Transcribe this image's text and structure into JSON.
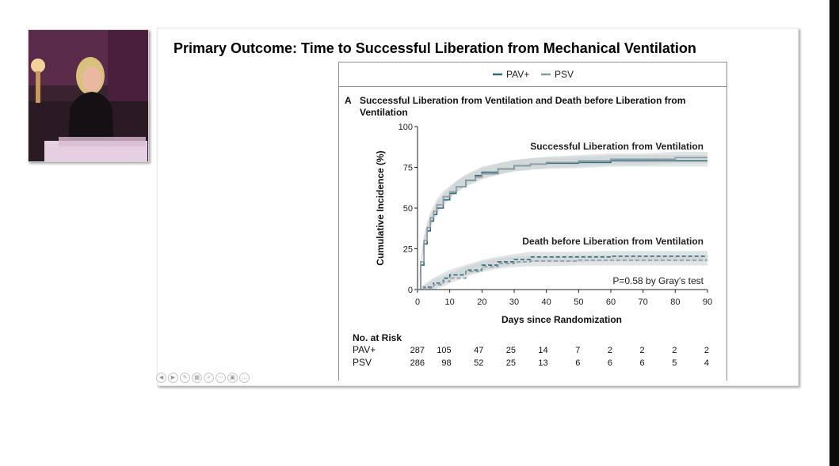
{
  "slide": {
    "title": "Primary Outcome:  Time to Successful Liberation from Mechanical Ventilation"
  },
  "legend": {
    "items": [
      "PAV+",
      "PSV"
    ]
  },
  "figure": {
    "panel_letter": "A",
    "panel_title_line1": "Successful Liberation from Ventilation and Death before Liberation from",
    "panel_title_line2": "Ventilation",
    "curve_label_liberation": "Successful Liberation from Ventilation",
    "curve_label_death": "Death before Liberation from Ventilation",
    "p_value": "P=0.58 by Gray's test"
  },
  "risk_table": {
    "title": "No. at Risk",
    "rows": [
      {
        "label": "PAV+",
        "values": [
          "287",
          "105",
          "47",
          "25",
          "14",
          "7",
          "2",
          "2",
          "2",
          "2"
        ]
      },
      {
        "label": "PSV",
        "values": [
          "286",
          "98",
          "52",
          "25",
          "13",
          "6",
          "6",
          "6",
          "5",
          "4"
        ]
      }
    ]
  },
  "chart_data": {
    "type": "line",
    "title": "Successful Liberation from Ventilation and Death before Liberation from Ventilation",
    "xlabel": "Days since Randomization",
    "ylabel": "Cumulative Incidence (%)",
    "xlim": [
      0,
      90
    ],
    "ylim": [
      0,
      100
    ],
    "xticks": [
      0,
      10,
      20,
      30,
      40,
      50,
      60,
      70,
      80,
      90
    ],
    "yticks": [
      0,
      25,
      50,
      75,
      100
    ],
    "grid": false,
    "legend_position": "top",
    "series": [
      {
        "name": "PAV+",
        "outcome": "Successful Liberation from Ventilation",
        "color": "#2f6b7a",
        "dash": "solid",
        "x": [
          0,
          1,
          2,
          3,
          4,
          5,
          6,
          8,
          10,
          12,
          15,
          18,
          20,
          25,
          30,
          35,
          40,
          50,
          60,
          70,
          80,
          90
        ],
        "y": [
          0,
          15,
          28,
          36,
          42,
          46,
          50,
          55,
          59,
          63,
          67,
          70,
          72,
          74,
          76,
          77,
          77.5,
          78,
          79,
          79,
          79,
          79
        ]
      },
      {
        "name": "PSV",
        "outcome": "Successful Liberation from Ventilation",
        "color": "#8a9a9e",
        "dash": "solid",
        "x": [
          0,
          1,
          2,
          3,
          4,
          5,
          6,
          8,
          10,
          12,
          15,
          18,
          20,
          25,
          30,
          35,
          40,
          50,
          60,
          70,
          80,
          90
        ],
        "y": [
          0,
          17,
          30,
          38,
          44,
          48,
          52,
          57,
          60,
          63,
          67,
          69,
          71,
          74,
          76,
          77,
          78,
          79,
          80,
          80,
          81,
          81
        ]
      },
      {
        "name": "PAV+",
        "outcome": "Death before Liberation from Ventilation",
        "color": "#2f6b7a",
        "dash": "dashed",
        "x": [
          0,
          2,
          5,
          8,
          10,
          15,
          20,
          25,
          30,
          35,
          40,
          50,
          60,
          70,
          80,
          90
        ],
        "y": [
          0,
          1.5,
          4,
          7,
          9,
          12,
          15,
          17,
          18.5,
          20,
          20,
          20,
          20.5,
          20.5,
          20.5,
          20.5
        ]
      },
      {
        "name": "PSV",
        "outcome": "Death before Liberation from Ventilation",
        "color": "#8a9a9e",
        "dash": "dashed",
        "x": [
          0,
          2,
          5,
          8,
          10,
          15,
          20,
          25,
          30,
          35,
          40,
          50,
          60,
          70,
          80,
          90
        ],
        "y": [
          0,
          1,
          3,
          5,
          7,
          11,
          14,
          16,
          17,
          17.5,
          17.5,
          18,
          18,
          18,
          18,
          18
        ]
      }
    ]
  }
}
